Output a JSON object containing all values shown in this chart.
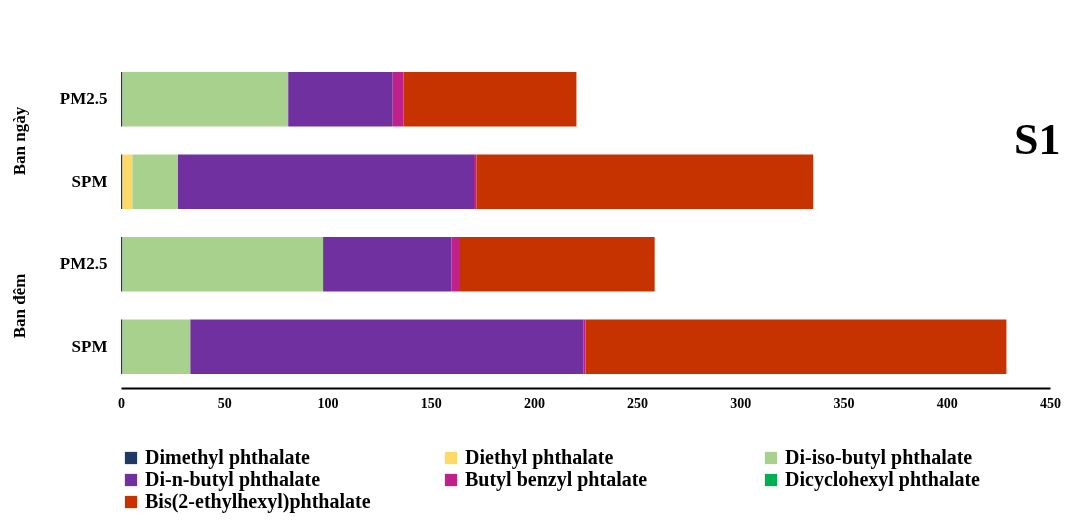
{
  "chart_data": {
    "type": "bar",
    "title": "S1",
    "orientation": "horizontal",
    "stacked": true,
    "categories": [
      "PM2.5",
      "SPM",
      "PM2.5",
      "SPM"
    ],
    "annotations": [
      "Ban ngày",
      "Ban đêm"
    ],
    "series": [
      {
        "name": "Dimethyl phthalate",
        "color": "#1f3864",
        "values": [
          0.7,
          0.7,
          0.7,
          0.7
        ]
      },
      {
        "name": "Diethyl phthalate",
        "color": "#ffd966",
        "values": [
          0,
          4.8,
          0,
          0
        ]
      },
      {
        "name": "Di-iso-butyl phthalate",
        "color": "#a9d18e",
        "values": [
          80.3,
          22.1,
          97.2,
          32.9
        ]
      },
      {
        "name": "Di-n-butyl phthalate",
        "color": "#7030a0",
        "values": [
          50.6,
          143.4,
          62.1,
          190.5
        ]
      },
      {
        "name": "Butyl benzyl phtalate",
        "color": "#c0208a",
        "values": [
          5.2,
          1.2,
          4.2,
          0.9
        ]
      },
      {
        "name": "Dicyclohexyl phthalate",
        "color": "#00b050",
        "values": [
          0,
          0,
          0,
          0
        ]
      },
      {
        "name": "Bis(2-ethylhexyl)phthalate",
        "color": "#c63300",
        "values": [
          83.8,
          163.1,
          94.3,
          203.9
        ]
      }
    ],
    "xlim": [
      0,
      450
    ],
    "xticks": [
      0,
      50,
      100,
      150,
      200,
      250,
      300,
      350,
      400,
      450
    ],
    "grid": false,
    "legend": "bottom"
  }
}
